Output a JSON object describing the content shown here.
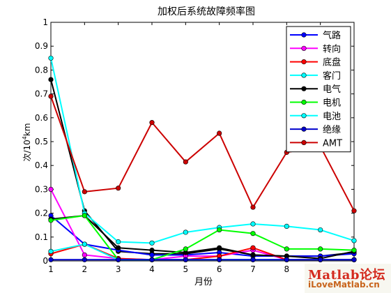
{
  "chart_data": {
    "type": "line",
    "title": "加权后系统故障频率图",
    "xlabel": "月份",
    "ylabel_main": "次/10",
    "ylabel_sup": "4",
    "ylabel_tail": "km",
    "x": [
      1,
      2,
      3,
      4,
      5,
      6,
      7,
      8,
      9,
      10
    ],
    "xticks": [
      "1",
      "2",
      "3",
      "4",
      "5",
      "6",
      "7",
      "8",
      "9",
      "10"
    ],
    "yticks": [
      "0",
      "0.1",
      "0.2",
      "0.3",
      "0.4",
      "0.5",
      "0.6",
      "0.7",
      "0.8",
      "0.9",
      "1"
    ],
    "xlim": [
      1,
      10
    ],
    "ylim": [
      0,
      1
    ],
    "grid": false,
    "legend_position": "top-right",
    "series": [
      {
        "name": "气路",
        "color": "#0000ff",
        "values": [
          0.19,
          0.07,
          0.045,
          0.025,
          0.025,
          0.035,
          0.02,
          0.02,
          0.02,
          0.03
        ]
      },
      {
        "name": "转向",
        "color": "#ff00ff",
        "values": [
          0.3,
          0.025,
          0.01,
          0.005,
          0.02,
          0.02,
          0.045,
          0.005,
          0.005,
          0.005
        ]
      },
      {
        "name": "底盘",
        "color": "#ff0000",
        "values": [
          0.03,
          0.07,
          0.01,
          0.005,
          0.005,
          0.02,
          0.055,
          0.005,
          0.005,
          0.005
        ]
      },
      {
        "name": "客门",
        "color": "#00ffff",
        "values": [
          0.85,
          0.2,
          0.08,
          0.075,
          0.12,
          0.14,
          0.155,
          0.145,
          0.13,
          0.085
        ]
      },
      {
        "name": "电气",
        "color": "#000000",
        "values": [
          0.175,
          0.19,
          0.055,
          0.045,
          0.035,
          0.055,
          0.025,
          0.02,
          0.01,
          0.04
        ]
      },
      {
        "name": "电机",
        "color": "#00ff00",
        "values": [
          0.17,
          0.19,
          0.005,
          0.005,
          0.05,
          0.13,
          0.115,
          0.05,
          0.05,
          0.045
        ]
      },
      {
        "name": "电池",
        "color": "#00ffff",
        "values": [
          0.04,
          0.07,
          0.005,
          0.005,
          0.005,
          0.005,
          0.005,
          0.005,
          0.005,
          0.005
        ]
      },
      {
        "name": "绝缘",
        "color": "#0000cc",
        "values": [
          0.005,
          0.005,
          0.005,
          0.005,
          0.005,
          0.005,
          0.005,
          0.005,
          0.005,
          0.005
        ]
      },
      {
        "name": "AMT",
        "color": "#cc0000",
        "values": [
          0.69,
          0.29,
          0.305,
          0.58,
          0.415,
          0.535,
          0.225,
          0.455,
          0.48,
          0.21
        ]
      }
    ],
    "extra_lines": [
      {
        "color": "#000000",
        "values": [
          0.76,
          0.21,
          0.04,
          0.03,
          0.03,
          0.05,
          0.025,
          0.02,
          0.02,
          0.035
        ]
      }
    ]
  },
  "watermark": {
    "top": "Matlab论坛",
    "bottom": "iLoveMatlab.cn"
  }
}
